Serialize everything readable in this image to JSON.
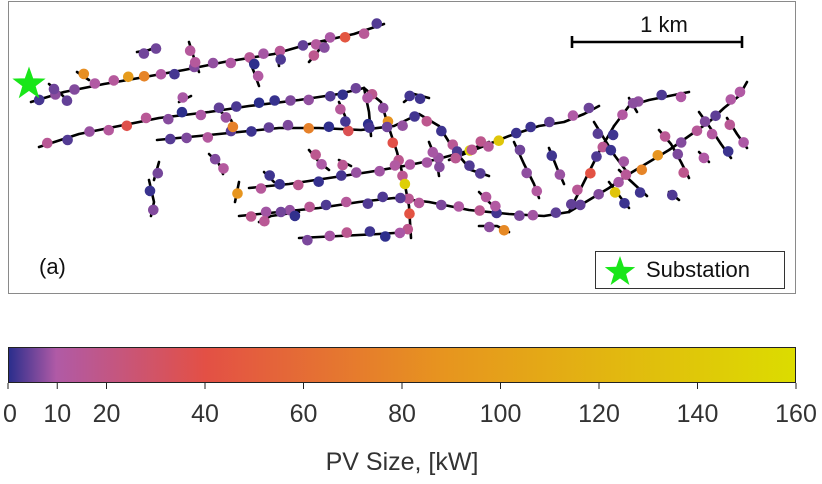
{
  "panel_label": "(a)",
  "scale_bar": {
    "label": "1 km"
  },
  "legend": {
    "label": "Substation",
    "marker_color": "#19e619"
  },
  "colorbar": {
    "title": "PV Size, [kW]",
    "min": 0,
    "max": 160,
    "ticks": [
      0,
      10,
      20,
      40,
      60,
      80,
      100,
      120,
      140,
      160
    ],
    "colors": [
      "#2b2e8c",
      "#b05aa6",
      "#e35045",
      "#e7941f",
      "#dcdc00"
    ]
  }
}
